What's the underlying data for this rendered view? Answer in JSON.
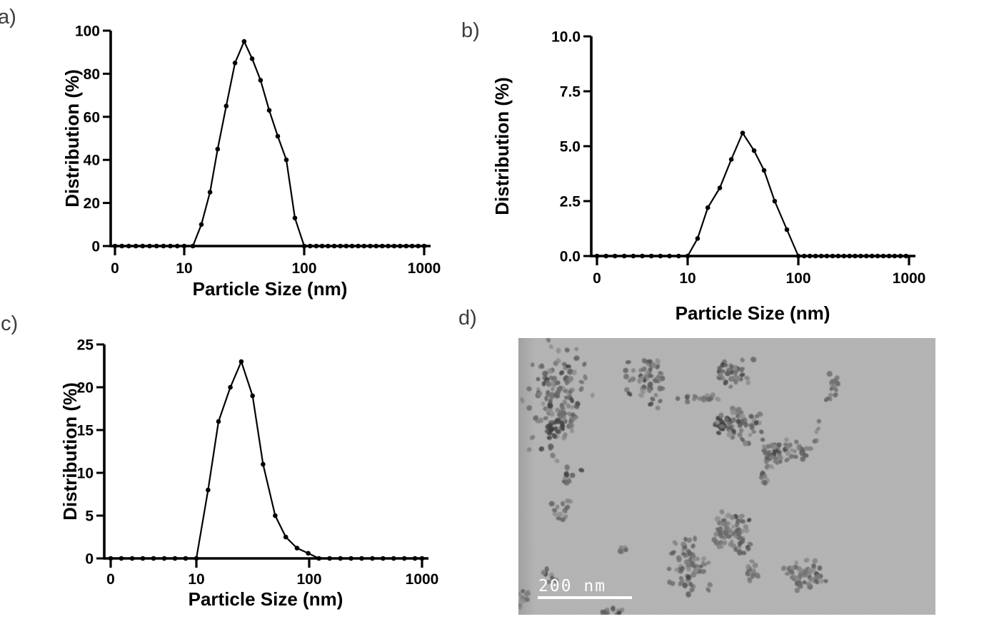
{
  "panels": {
    "a": {
      "label": "a)"
    },
    "b": {
      "label": "b)"
    },
    "c": {
      "label": "c)"
    },
    "d": {
      "label": "d)"
    }
  },
  "colors": {
    "ink": "#000000",
    "panel_label": "#3d3d3d",
    "tem_background": "#b3b3b3",
    "tem_particle_mid": "#6e6e6e",
    "tem_particle_dark": "#383838",
    "scale_bar": "#ffffff"
  },
  "tem": {
    "scale_bar_text": "200 nm"
  },
  "chart_data": [
    {
      "id": "a",
      "type": "line",
      "title": "",
      "xlabel": "Particle Size (nm)",
      "ylabel": "Distribution (%)",
      "x_scale": "log",
      "x_tick_labels": [
        "0",
        "10",
        "100",
        "1000"
      ],
      "x_tick_values": [
        1,
        10,
        100,
        1000
      ],
      "y_ticks": [
        "0",
        "20",
        "40",
        "60",
        "80",
        "100"
      ],
      "ylim": [
        0,
        100
      ],
      "xlim_note": "x axis: 0 label then log decades to 1000",
      "grid": false,
      "legend": "none",
      "points": [
        [
          1,
          0
        ],
        [
          1.26,
          0
        ],
        [
          1.58,
          0
        ],
        [
          2,
          0
        ],
        [
          2.51,
          0
        ],
        [
          3.16,
          0
        ],
        [
          3.98,
          0
        ],
        [
          5.01,
          0
        ],
        [
          6.31,
          0
        ],
        [
          7.94,
          0
        ],
        [
          10,
          0
        ],
        [
          11.8,
          0
        ],
        [
          13.9,
          10
        ],
        [
          16.4,
          25
        ],
        [
          19,
          45
        ],
        [
          22.4,
          65
        ],
        [
          26.5,
          85
        ],
        [
          31.6,
          95
        ],
        [
          36.8,
          87
        ],
        [
          43.3,
          77
        ],
        [
          51.1,
          63
        ],
        [
          60.2,
          51
        ],
        [
          71,
          40
        ],
        [
          83.7,
          13
        ],
        [
          100,
          0
        ],
        [
          112,
          0
        ],
        [
          126,
          0
        ],
        [
          141,
          0
        ],
        [
          158,
          0
        ],
        [
          178,
          0
        ],
        [
          200,
          0
        ],
        [
          224,
          0
        ],
        [
          251,
          0
        ],
        [
          282,
          0
        ],
        [
          316,
          0
        ],
        [
          355,
          0
        ],
        [
          398,
          0
        ],
        [
          447,
          0
        ],
        [
          501,
          0
        ],
        [
          562,
          0
        ],
        [
          631,
          0
        ],
        [
          708,
          0
        ],
        [
          794,
          0
        ],
        [
          891,
          0
        ],
        [
          1000,
          0
        ]
      ]
    },
    {
      "id": "b",
      "type": "line",
      "title": "",
      "xlabel": "Particle Size (nm)",
      "ylabel": "Distribution (%)",
      "x_scale": "log",
      "x_tick_labels": [
        "0",
        "10",
        "100",
        "1000"
      ],
      "x_tick_values": [
        1,
        10,
        100,
        1000
      ],
      "y_ticks": [
        "0.0",
        "2.5",
        "5.0",
        "7.5",
        "10.0"
      ],
      "ylim": [
        0,
        10
      ],
      "xlim_note": "x axis: 0 label then log decades to 1000",
      "grid": false,
      "legend": "none",
      "points": [
        [
          1,
          0
        ],
        [
          1.26,
          0
        ],
        [
          1.58,
          0
        ],
        [
          2,
          0
        ],
        [
          2.51,
          0
        ],
        [
          3.16,
          0
        ],
        [
          3.98,
          0
        ],
        [
          5.01,
          0
        ],
        [
          6.31,
          0
        ],
        [
          7.94,
          0
        ],
        [
          10,
          0
        ],
        [
          12.3,
          0.8
        ],
        [
          15.2,
          2.2
        ],
        [
          19.5,
          3.1
        ],
        [
          24.8,
          4.4
        ],
        [
          31.4,
          5.6
        ],
        [
          39.8,
          4.8
        ],
        [
          49,
          3.9
        ],
        [
          61.2,
          2.5
        ],
        [
          78.9,
          1.2
        ],
        [
          100,
          0
        ],
        [
          113,
          0
        ],
        [
          127,
          0
        ],
        [
          143,
          0
        ],
        [
          161,
          0
        ],
        [
          181,
          0
        ],
        [
          204,
          0
        ],
        [
          229,
          0
        ],
        [
          258,
          0
        ],
        [
          290,
          0
        ],
        [
          326,
          0
        ],
        [
          366,
          0
        ],
        [
          412,
          0
        ],
        [
          463,
          0
        ],
        [
          521,
          0
        ],
        [
          586,
          0
        ],
        [
          660,
          0
        ],
        [
          742,
          0
        ],
        [
          835,
          0
        ],
        [
          940,
          0
        ]
      ]
    },
    {
      "id": "c",
      "type": "line",
      "title": "",
      "xlabel": "Particle Size (nm)",
      "ylabel": "Distribution (%)",
      "x_scale": "log",
      "x_tick_labels": [
        "0",
        "10",
        "100",
        "1000"
      ],
      "x_tick_values": [
        1,
        10,
        100,
        1000
      ],
      "y_ticks": [
        "0",
        "5",
        "10",
        "15",
        "20",
        "25"
      ],
      "ylim": [
        0,
        25
      ],
      "xlim_note": "x axis: 0 label then log decades to 1000",
      "grid": false,
      "legend": "none",
      "points": [
        [
          1,
          0
        ],
        [
          1.33,
          0
        ],
        [
          1.78,
          0
        ],
        [
          2.37,
          0
        ],
        [
          3.16,
          0
        ],
        [
          4.22,
          0
        ],
        [
          5.62,
          0
        ],
        [
          7.5,
          0
        ],
        [
          10,
          0
        ],
        [
          12.7,
          8
        ],
        [
          15.7,
          16
        ],
        [
          20,
          20
        ],
        [
          25,
          23
        ],
        [
          31.5,
          19
        ],
        [
          39,
          11
        ],
        [
          50,
          5
        ],
        [
          62,
          2.5
        ],
        [
          78,
          1.2
        ],
        [
          98,
          0.6
        ],
        [
          122,
          0
        ],
        [
          152,
          0
        ],
        [
          189,
          0
        ],
        [
          235,
          0
        ],
        [
          292,
          0
        ],
        [
          363,
          0
        ],
        [
          451,
          0
        ],
        [
          561,
          0
        ],
        [
          697,
          0
        ],
        [
          866,
          0
        ],
        [
          1000,
          0
        ]
      ]
    }
  ]
}
